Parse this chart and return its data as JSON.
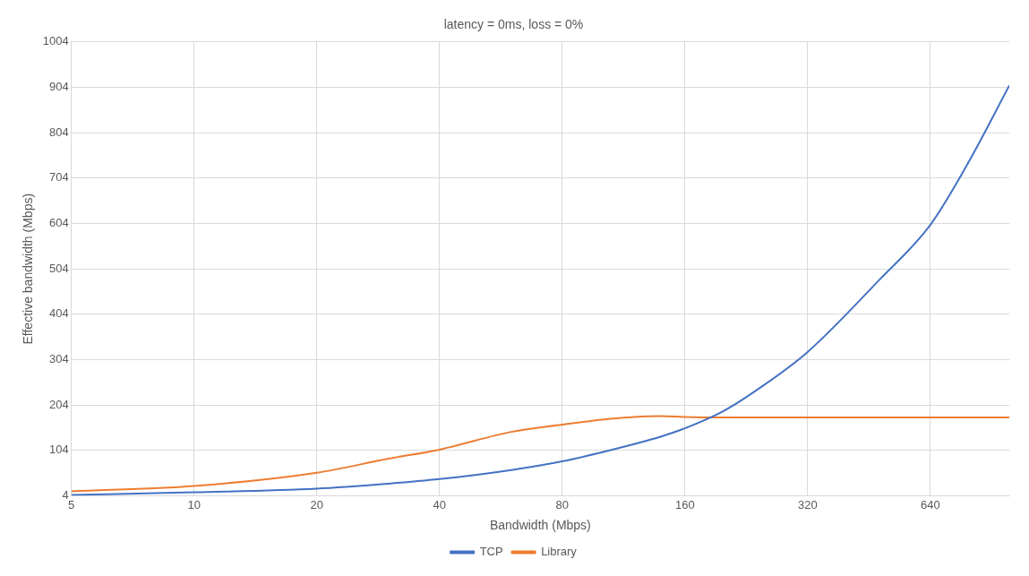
{
  "chart_data": {
    "type": "line",
    "title": "latency = 0ms, loss = 0%",
    "xlabel": "Bandwidth (Mbps)",
    "ylabel": "Effective bandwidth (Mbps)",
    "log": "x",
    "xlim": [
      5,
      1000
    ],
    "xticks": [
      5,
      10,
      20,
      40,
      80,
      160,
      320,
      640
    ],
    "ylim": [
      4,
      1004
    ],
    "yticks": [
      4,
      104,
      204,
      304,
      404,
      504,
      604,
      704,
      804,
      904,
      1004
    ],
    "grid": true,
    "legend": "bottom",
    "marker": "none",
    "line_style": "solid",
    "series": [
      {
        "name": "TCP",
        "color": "#4472c4",
        "x": [
          5,
          10,
          20,
          30,
          40,
          60,
          80,
          100,
          120,
          140,
          160,
          200,
          250,
          320,
          480,
          640,
          800,
          1000
        ],
        "values": [
          6,
          12,
          20,
          31,
          41,
          61,
          80,
          100,
          118,
          135,
          153,
          192,
          248,
          321,
          480,
          601,
          744,
          908
        ]
      },
      {
        "name": "Library",
        "color": "#ed7d31",
        "x": [
          5,
          10,
          20,
          30,
          40,
          60,
          80,
          100,
          120,
          140,
          160,
          200,
          320,
          640,
          1000
        ],
        "values": [
          14,
          26,
          55,
          86,
          106,
          145,
          161,
          172,
          178,
          180,
          178,
          177,
          177,
          177,
          177
        ]
      }
    ]
  }
}
